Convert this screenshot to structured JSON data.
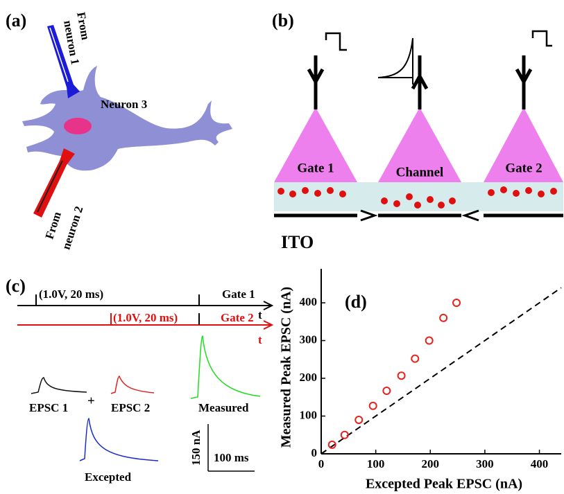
{
  "panel_a": {
    "label": "(a)",
    "from_1": "From",
    "neuron_1": "neuron 1",
    "neuron_3": "Neuron 3",
    "from_2": "From",
    "neuron_2": "neuron 2"
  },
  "panel_b": {
    "label": "(b)",
    "gate_1": "Gate 1",
    "channel": "Channel",
    "gate_2": "Gate 2",
    "electrode": "ITO"
  },
  "panel_c": {
    "label": "(c)",
    "pulse_1": "(1.0V, 20 ms)",
    "gate_1": "Gate 1",
    "t_1": "t",
    "pulse_2": "(1.0V, 20 ms)",
    "gate_2": "Gate 2",
    "t_2": "t",
    "epsc_1": "EPSC 1",
    "plus": "+",
    "epsc_2": "EPSC 2",
    "measured": "Measured",
    "expected": "Excepted",
    "scale_y": "150 nA",
    "scale_x": "100 ms"
  },
  "chart_data": {
    "type": "scatter",
    "panel_label": "(d)",
    "x_label": "Excepted Peak EPSC (nA)",
    "y_label": "Measured Peak EPSC (nA)",
    "x": [
      20,
      43,
      69,
      95,
      120,
      147,
      172,
      198,
      224,
      248
    ],
    "values": [
      24,
      50,
      90,
      127,
      167,
      207,
      252,
      300,
      360,
      400
    ],
    "color": "#e8221e",
    "identity_line": true,
    "xlim": [
      0,
      440
    ],
    "ylim": [
      0,
      490
    ],
    "xticks": [
      0,
      100,
      200,
      300,
      400
    ],
    "yticks": [
      0,
      100,
      200,
      300,
      400
    ]
  }
}
